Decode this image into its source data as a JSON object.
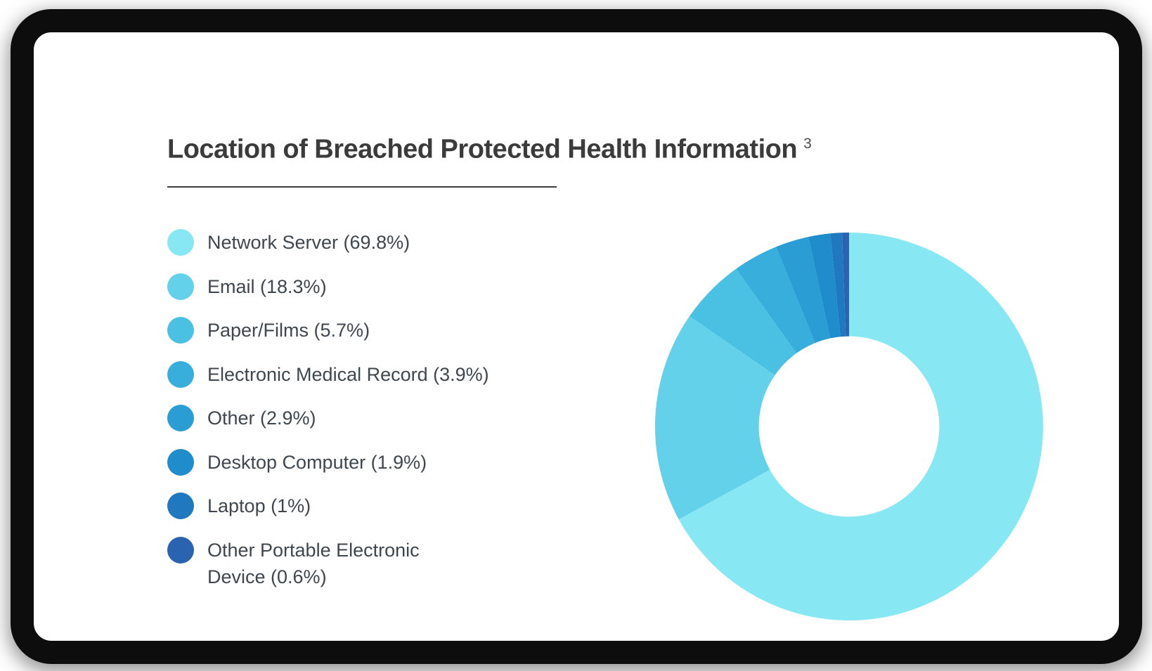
{
  "frame": {
    "background": "#ffffff",
    "border_color": "#0d0d0d"
  },
  "header": {
    "title": "Location of Breached Protected Health Information",
    "superscript": "3"
  },
  "chart_data": {
    "type": "pie",
    "variant": "donut",
    "title": "Location of Breached Protected Health Information",
    "footnote_marker": "3",
    "legend_position": "left",
    "start_angle": "12-oclock",
    "direction": "clockwise",
    "inner_radius_ratio": 0.465,
    "items": [
      {
        "name": "Network Server",
        "value_pct": 69.8,
        "label": "Network Server (69.8%)",
        "color": "#87E8F4"
      },
      {
        "name": "Email",
        "value_pct": 18.3,
        "label": "Email (18.3%)",
        "color": "#62D1E9"
      },
      {
        "name": "Paper/Films",
        "value_pct": 5.7,
        "label": "Paper/Films (5.7%)",
        "color": "#4AC0E3"
      },
      {
        "name": "Electronic Medical Record",
        "value_pct": 3.9,
        "label": "Electronic Medical Record (3.9%)",
        "color": "#38AEDD"
      },
      {
        "name": "Other",
        "value_pct": 2.9,
        "label": "Other (2.9%)",
        "color": "#2B9DD5"
      },
      {
        "name": "Desktop Computer",
        "value_pct": 1.9,
        "label": "Desktop Computer (1.9%)",
        "color": "#1F8CCB"
      },
      {
        "name": "Laptop",
        "value_pct": 1.0,
        "label": "Laptop (1%)",
        "color": "#2078BF"
      },
      {
        "name": "Other Portable Electronic Device",
        "value_pct": 0.6,
        "label": "Other Portable Electronic\nDevice (0.6%)",
        "color": "#2A63B0"
      }
    ]
  }
}
